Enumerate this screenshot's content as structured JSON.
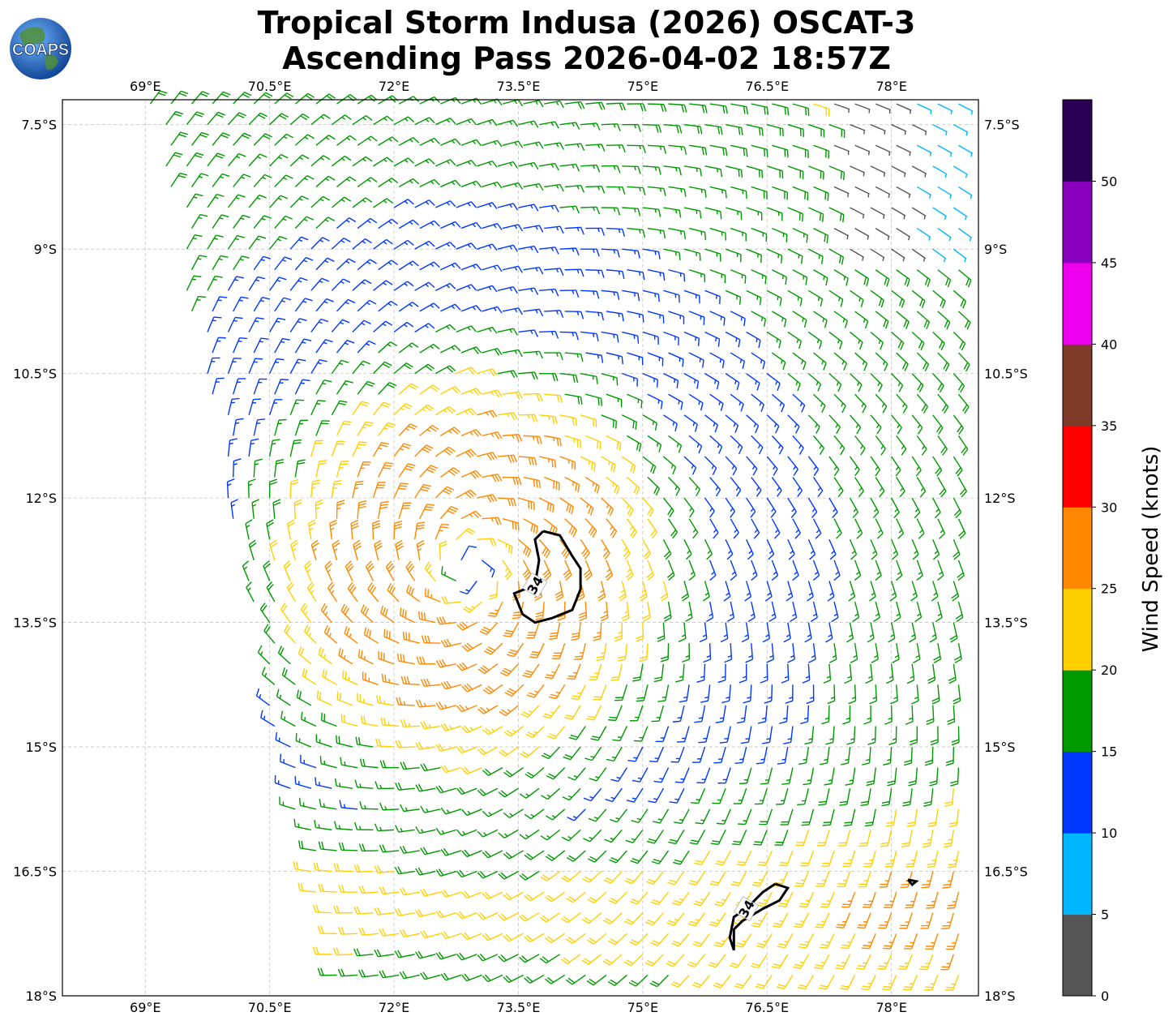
{
  "title": {
    "line1": "Tropical Storm Indusa (2026) OSCAT-3",
    "line2": "Ascending Pass 2026-04-02 18:57Z"
  },
  "logo_text": "COAPS",
  "map": {
    "lon_range": [
      68.0,
      79.05
    ],
    "lat_range": [
      -18.0,
      -7.2
    ],
    "lon_ticks": [
      "69°E",
      "70.5°E",
      "72°E",
      "73.5°E",
      "75°E",
      "76.5°E",
      "78°E"
    ],
    "lon_tick_values": [
      69,
      70.5,
      72,
      73.5,
      75,
      76.5,
      78
    ],
    "lat_ticks": [
      "7.5°S",
      "9°S",
      "10.5°S",
      "12°S",
      "13.5°S",
      "15°S",
      "16.5°S",
      "18°S"
    ],
    "lat_tick_values": [
      -7.5,
      -9,
      -10.5,
      -12,
      -13.5,
      -15,
      -16.5,
      -18
    ],
    "grid": true,
    "storm_center": {
      "lon": 72.9,
      "lat": -12.85
    },
    "contour_label": "34",
    "contours": [
      {
        "label": "34",
        "points": [
          [
            73.8,
            -12.4
          ],
          [
            74.0,
            -12.45
          ],
          [
            74.15,
            -12.7
          ],
          [
            74.25,
            -12.85
          ],
          [
            74.25,
            -13.1
          ],
          [
            74.15,
            -13.35
          ],
          [
            73.9,
            -13.45
          ],
          [
            73.7,
            -13.5
          ],
          [
            73.55,
            -13.4
          ],
          [
            73.45,
            -13.15
          ],
          [
            73.7,
            -13.05
          ],
          [
            73.75,
            -12.75
          ],
          [
            73.7,
            -12.5
          ],
          [
            73.8,
            -12.4
          ]
        ]
      },
      {
        "label": "34",
        "points": [
          [
            76.6,
            -16.65
          ],
          [
            76.75,
            -16.7
          ],
          [
            76.65,
            -16.85
          ],
          [
            76.45,
            -16.95
          ],
          [
            76.2,
            -17.1
          ],
          [
            76.1,
            -17.2
          ],
          [
            76.1,
            -17.45
          ],
          [
            76.05,
            -17.3
          ],
          [
            76.1,
            -17.05
          ],
          [
            76.25,
            -16.95
          ],
          [
            76.45,
            -16.75
          ],
          [
            76.6,
            -16.65
          ]
        ]
      },
      {
        "points": [
          [
            78.2,
            -16.6
          ],
          [
            78.3,
            -16.62
          ],
          [
            78.25,
            -16.66
          ],
          [
            78.2,
            -16.6
          ]
        ]
      }
    ]
  },
  "colorbar": {
    "label": "Wind Speed (knots)",
    "levels": [
      "0",
      "5",
      "10",
      "15",
      "20",
      "25",
      "30",
      "35",
      "40",
      "45",
      "50"
    ],
    "colors": [
      "#555555",
      "#00b7ff",
      "#0038ff",
      "#009900",
      "#ffd000",
      "#ff8800",
      "#ff0000",
      "#7f3a2a",
      "#ee00ee",
      "#8800bb",
      "#2a0055"
    ]
  }
}
